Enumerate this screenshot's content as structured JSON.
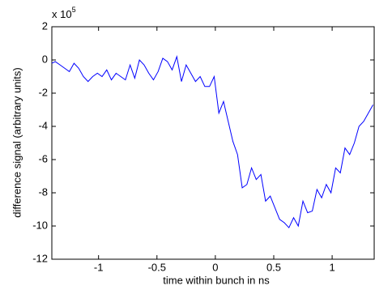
{
  "chart_data": {
    "type": "line",
    "xlabel": "time within bunch in ns",
    "ylabel": "difference signal (arbitrary units)",
    "y_multiplier": {
      "base": "x 10",
      "exponent": "5"
    },
    "xlim": [
      -1.4,
      1.36
    ],
    "ylim": [
      -12,
      2
    ],
    "xticks": [
      -1,
      -0.5,
      0,
      0.5,
      1
    ],
    "yticks": [
      -12,
      -10,
      -8,
      -6,
      -4,
      -2,
      0,
      2
    ],
    "grid": false,
    "series": [
      {
        "color": "#0000ff",
        "x": [
          -1.4,
          -1.37,
          -1.33,
          -1.29,
          -1.25,
          -1.21,
          -1.17,
          -1.13,
          -1.09,
          -1.05,
          -1.01,
          -0.97,
          -0.93,
          -0.89,
          -0.85,
          -0.81,
          -0.77,
          -0.73,
          -0.69,
          -0.65,
          -0.61,
          -0.57,
          -0.53,
          -0.49,
          -0.45,
          -0.41,
          -0.37,
          -0.33,
          -0.29,
          -0.25,
          -0.21,
          -0.17,
          -0.13,
          -0.09,
          -0.05,
          -0.01,
          0.03,
          0.07,
          0.11,
          0.15,
          0.19,
          0.23,
          0.27,
          0.31,
          0.35,
          0.39,
          0.43,
          0.47,
          0.51,
          0.55,
          0.59,
          0.63,
          0.67,
          0.71,
          0.75,
          0.79,
          0.83,
          0.87,
          0.91,
          0.95,
          0.99,
          1.03,
          1.07,
          1.11,
          1.15,
          1.19,
          1.23,
          1.27,
          1.31,
          1.35
        ],
        "values": [
          -0.2,
          -0.1,
          -0.3,
          -0.5,
          -0.7,
          -0.2,
          -0.5,
          -1.0,
          -1.3,
          -1.0,
          -0.8,
          -1.0,
          -0.6,
          -1.2,
          -0.8,
          -1.0,
          -1.2,
          -0.3,
          -1.1,
          0.0,
          -0.3,
          -0.8,
          -1.2,
          -0.7,
          0.1,
          -0.1,
          -0.6,
          0.2,
          -1.3,
          -0.3,
          -0.8,
          -1.3,
          -1.0,
          -1.6,
          -1.6,
          -1.0,
          -3.2,
          -2.5,
          -3.7,
          -4.9,
          -5.7,
          -7.7,
          -7.5,
          -6.5,
          -7.2,
          -6.9,
          -8.5,
          -8.2,
          -8.9,
          -9.6,
          -9.8,
          -10.1,
          -9.5,
          -10.0,
          -8.5,
          -9.2,
          -9.1,
          -7.8,
          -8.3,
          -7.5,
          -8.0,
          -6.5,
          -6.8,
          -5.3,
          -5.7,
          -5.0,
          -4.0,
          -3.7,
          -3.2,
          -2.7
        ]
      }
    ]
  }
}
